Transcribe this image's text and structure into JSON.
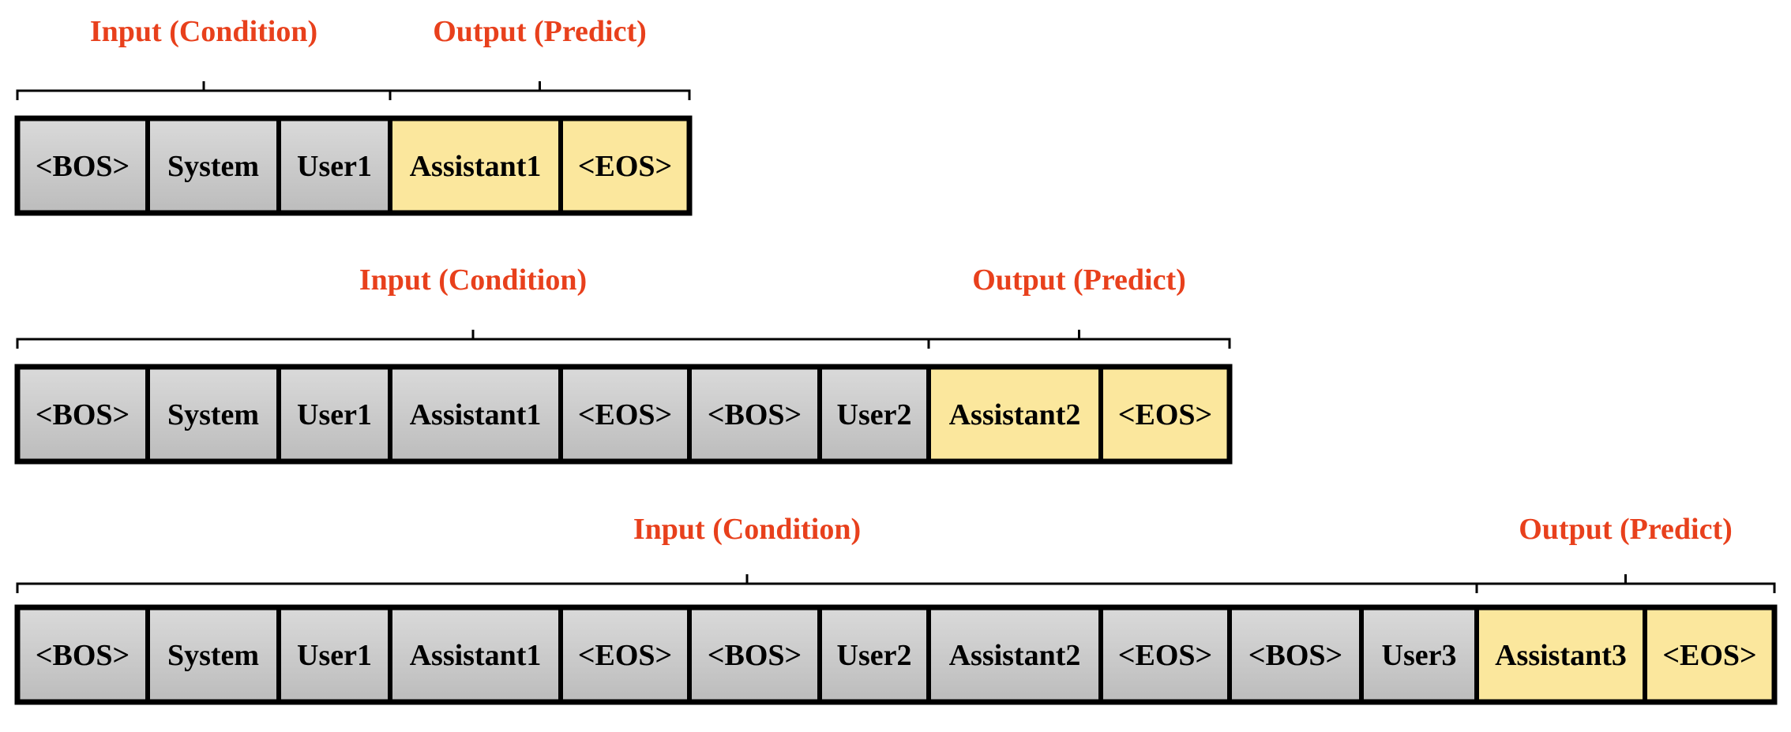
{
  "labels": {
    "input": "Input (Condition)",
    "output": "Output (Predict)"
  },
  "colors": {
    "label": "#e8401c",
    "input_fill_top": "#d9d9d9",
    "input_fill_bottom": "#bfbfbf",
    "output_fill": "#fbe79d",
    "border": "#000000"
  },
  "rows": [
    {
      "tokens": [
        {
          "text": "<BOS>",
          "kind": "input"
        },
        {
          "text": "System",
          "kind": "input"
        },
        {
          "text": "User1",
          "kind": "input"
        },
        {
          "text": "Assistant1",
          "kind": "output"
        },
        {
          "text": "<EOS>",
          "kind": "output"
        }
      ]
    },
    {
      "tokens": [
        {
          "text": "<BOS>",
          "kind": "input"
        },
        {
          "text": "System",
          "kind": "input"
        },
        {
          "text": "User1",
          "kind": "input"
        },
        {
          "text": "Assistant1",
          "kind": "input"
        },
        {
          "text": "<EOS>",
          "kind": "input"
        },
        {
          "text": "<BOS>",
          "kind": "input"
        },
        {
          "text": "User2",
          "kind": "input"
        },
        {
          "text": "Assistant2",
          "kind": "output"
        },
        {
          "text": "<EOS>",
          "kind": "output"
        }
      ]
    },
    {
      "tokens": [
        {
          "text": "<BOS>",
          "kind": "input"
        },
        {
          "text": "System",
          "kind": "input"
        },
        {
          "text": "User1",
          "kind": "input"
        },
        {
          "text": "Assistant1",
          "kind": "input"
        },
        {
          "text": "<EOS>",
          "kind": "input"
        },
        {
          "text": "<BOS>",
          "kind": "input"
        },
        {
          "text": "User2",
          "kind": "input"
        },
        {
          "text": "Assistant2",
          "kind": "input"
        },
        {
          "text": "<EOS>",
          "kind": "input"
        },
        {
          "text": "<BOS>",
          "kind": "input"
        },
        {
          "text": "User3",
          "kind": "input"
        },
        {
          "text": "Assistant3",
          "kind": "output"
        },
        {
          "text": "<EOS>",
          "kind": "output"
        }
      ]
    }
  ]
}
